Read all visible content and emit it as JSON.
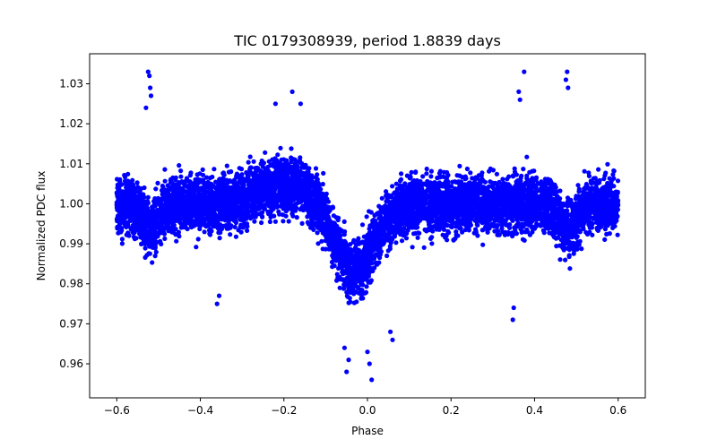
{
  "chart_data": {
    "type": "scatter",
    "title": "TIC 0179308939, period 1.8839 days",
    "xlabel": "Phase",
    "ylabel": "Normalized PDC flux",
    "xlim": [
      -0.665,
      0.665
    ],
    "ylim": [
      0.9515,
      1.0375
    ],
    "x_ticks": [
      -0.6,
      -0.4,
      -0.2,
      0.0,
      0.2,
      0.4,
      0.6
    ],
    "x_tick_labels": [
      "−0.6",
      "−0.4",
      "−0.2",
      "0.0",
      "0.2",
      "0.4",
      "0.6"
    ],
    "y_ticks": [
      0.96,
      0.97,
      0.98,
      0.99,
      1.0,
      1.01,
      1.02,
      1.03
    ],
    "y_tick_labels": [
      "0.96",
      "0.97",
      "0.98",
      "0.99",
      "1.00",
      "1.01",
      "1.02",
      "1.03"
    ],
    "grid": false,
    "marker_color": "#0000ff",
    "series": [
      {
        "name": "PDC flux",
        "phase_range": [
          -0.6,
          0.6
        ],
        "baseline": 1.0,
        "band_halfwidth": 0.0145,
        "features": [
          {
            "kind": "primary_eclipse",
            "center": -0.03,
            "depth": 0.017,
            "width": 0.045
          },
          {
            "kind": "secondary_eclipse",
            "center": -0.52,
            "depth": 0.006,
            "width": 0.02
          },
          {
            "kind": "secondary_eclipse",
            "center": 0.48,
            "depth": 0.006,
            "width": 0.02
          },
          {
            "kind": "bump",
            "center": -0.2,
            "height": 0.005,
            "width": 0.06
          }
        ],
        "outliers": [
          {
            "x": -0.525,
            "y": 1.033
          },
          {
            "x": -0.522,
            "y": 1.032
          },
          {
            "x": -0.52,
            "y": 1.029
          },
          {
            "x": -0.518,
            "y": 1.027
          },
          {
            "x": -0.53,
            "y": 1.024
          },
          {
            "x": 0.375,
            "y": 1.033
          },
          {
            "x": 0.362,
            "y": 1.028
          },
          {
            "x": 0.365,
            "y": 1.026
          },
          {
            "x": 0.478,
            "y": 1.033
          },
          {
            "x": 0.475,
            "y": 1.031
          },
          {
            "x": 0.48,
            "y": 1.029
          },
          {
            "x": -0.18,
            "y": 1.028
          },
          {
            "x": -0.16,
            "y": 1.025
          },
          {
            "x": -0.22,
            "y": 1.025
          },
          {
            "x": -0.05,
            "y": 0.958
          },
          {
            "x": -0.045,
            "y": 0.961
          },
          {
            "x": 0.01,
            "y": 0.956
          },
          {
            "x": 0.005,
            "y": 0.96
          },
          {
            "x": 0.0,
            "y": 0.963
          },
          {
            "x": -0.055,
            "y": 0.964
          },
          {
            "x": 0.06,
            "y": 0.966
          },
          {
            "x": 0.055,
            "y": 0.968
          },
          {
            "x": 0.348,
            "y": 0.971
          },
          {
            "x": -0.36,
            "y": 0.975
          },
          {
            "x": -0.355,
            "y": 0.977
          },
          {
            "x": 0.35,
            "y": 0.974
          }
        ]
      }
    ]
  }
}
